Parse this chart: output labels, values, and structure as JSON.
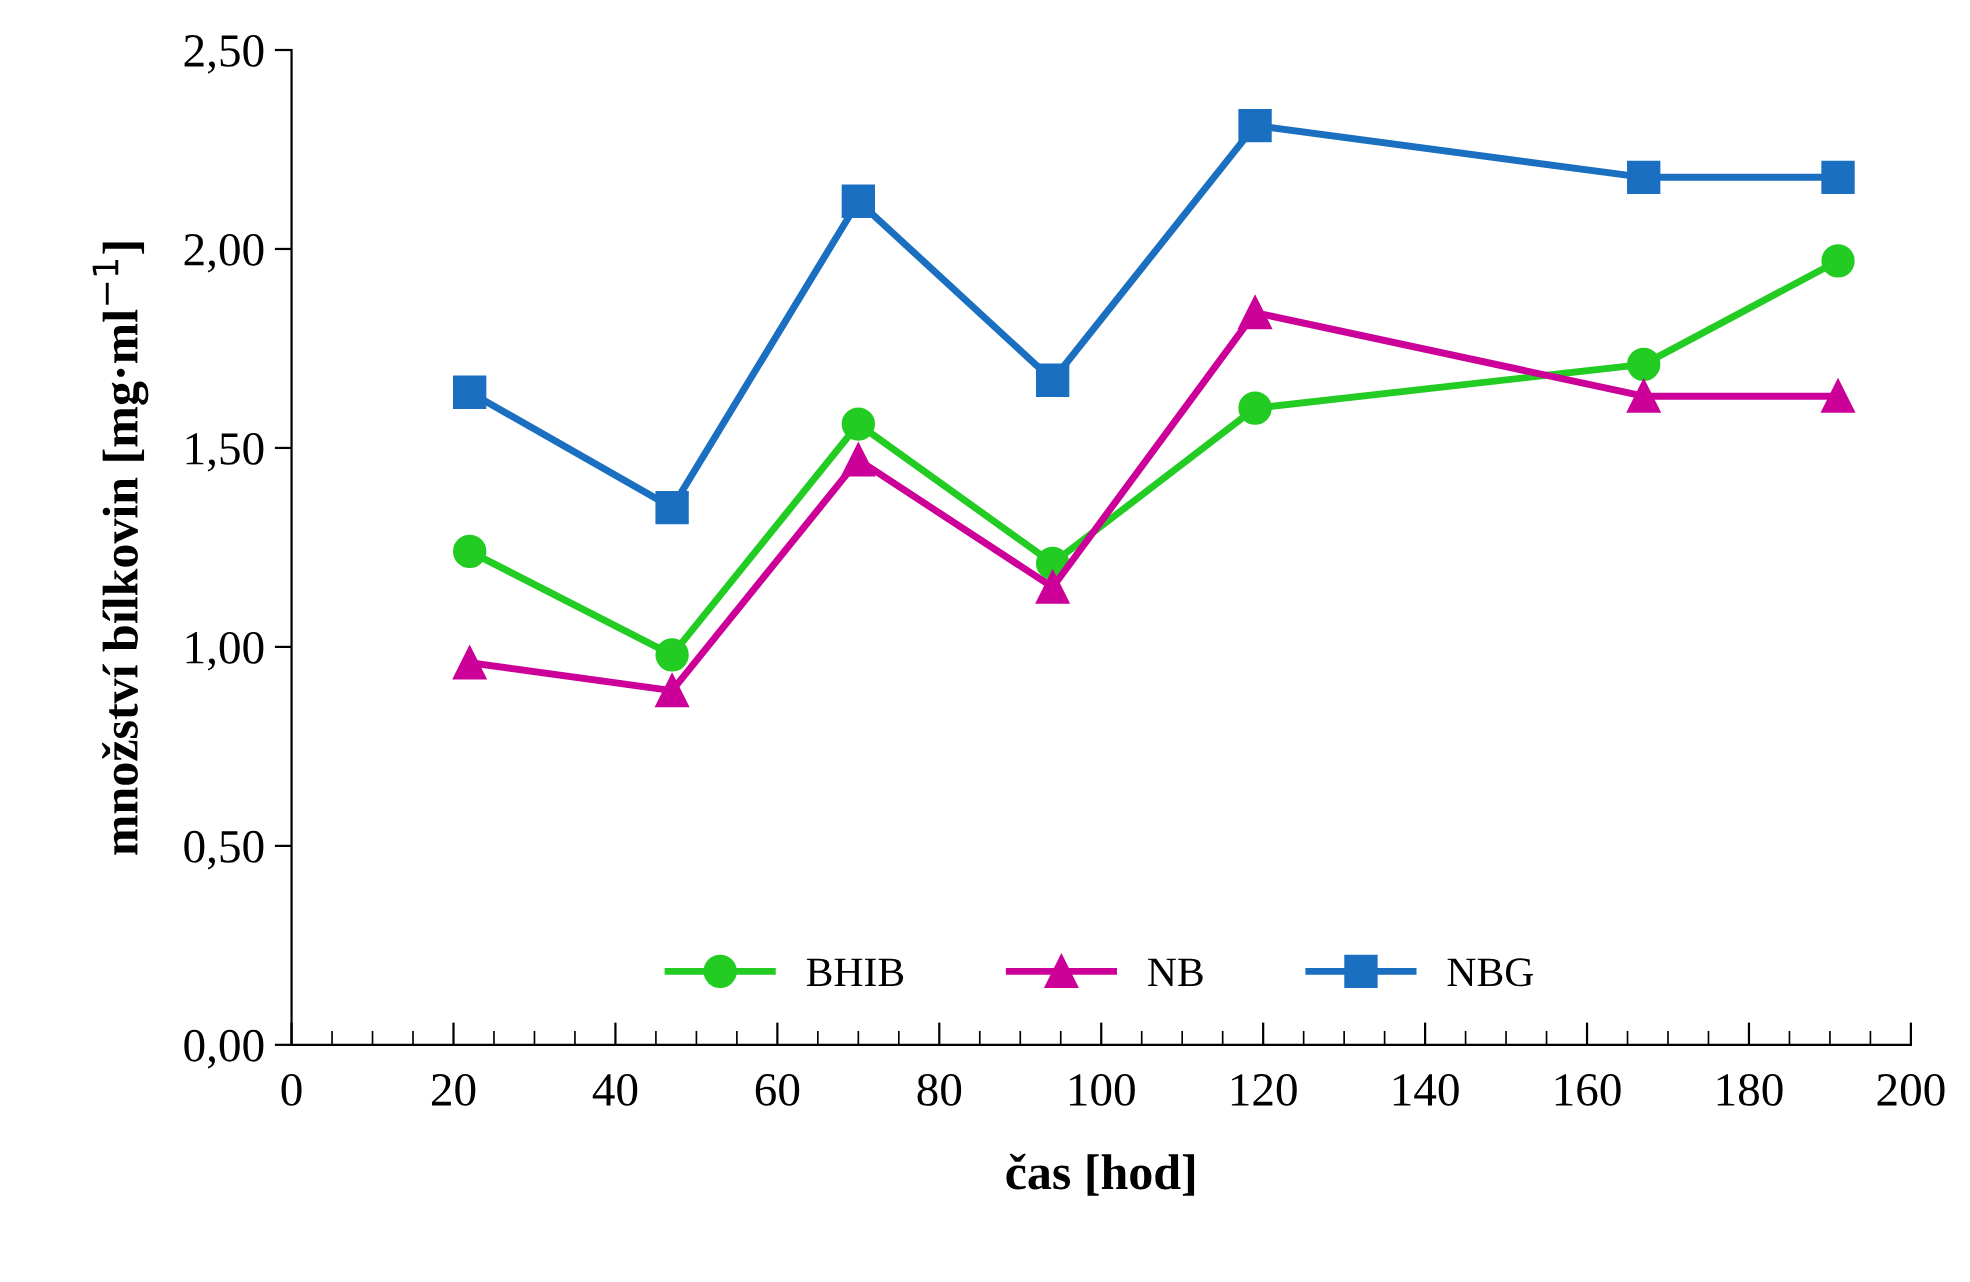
{
  "chart_data": {
    "type": "line",
    "xlabel": "čas [hod]",
    "ylabel": "množství bílkovin [mg·ml$^{−1}$]",
    "x": [
      22,
      47,
      70,
      94,
      119,
      167,
      191
    ],
    "series": [
      {
        "name": "BHIB",
        "color": "#22cc22",
        "marker": "circle",
        "values": [
          1.24,
          0.98,
          1.56,
          1.21,
          1.6,
          1.71,
          1.97
        ]
      },
      {
        "name": "NB",
        "color": "#cc0099",
        "marker": "triangle",
        "values": [
          0.96,
          0.89,
          1.47,
          1.15,
          1.84,
          1.63,
          1.63
        ]
      },
      {
        "name": "NBG",
        "color": "#1a6fc0",
        "marker": "square",
        "values": [
          1.64,
          1.35,
          2.12,
          1.67,
          2.31,
          2.18,
          2.18
        ]
      }
    ],
    "xlim": [
      0,
      200
    ],
    "xticks": [
      0,
      20,
      40,
      60,
      80,
      100,
      120,
      140,
      160,
      180,
      200
    ],
    "ylim": [
      0,
      2.5
    ],
    "yticks": [
      {
        "value": 0,
        "label": "0,00"
      },
      {
        "value": 0.5,
        "label": "0,50"
      },
      {
        "value": 1,
        "label": "1,00"
      },
      {
        "value": 1.5,
        "label": "1,50"
      },
      {
        "value": 2,
        "label": "2,00"
      },
      {
        "value": 2.5,
        "label": "2,50"
      }
    ],
    "grid": false,
    "legend": "bottom",
    "line_style": "solid"
  }
}
